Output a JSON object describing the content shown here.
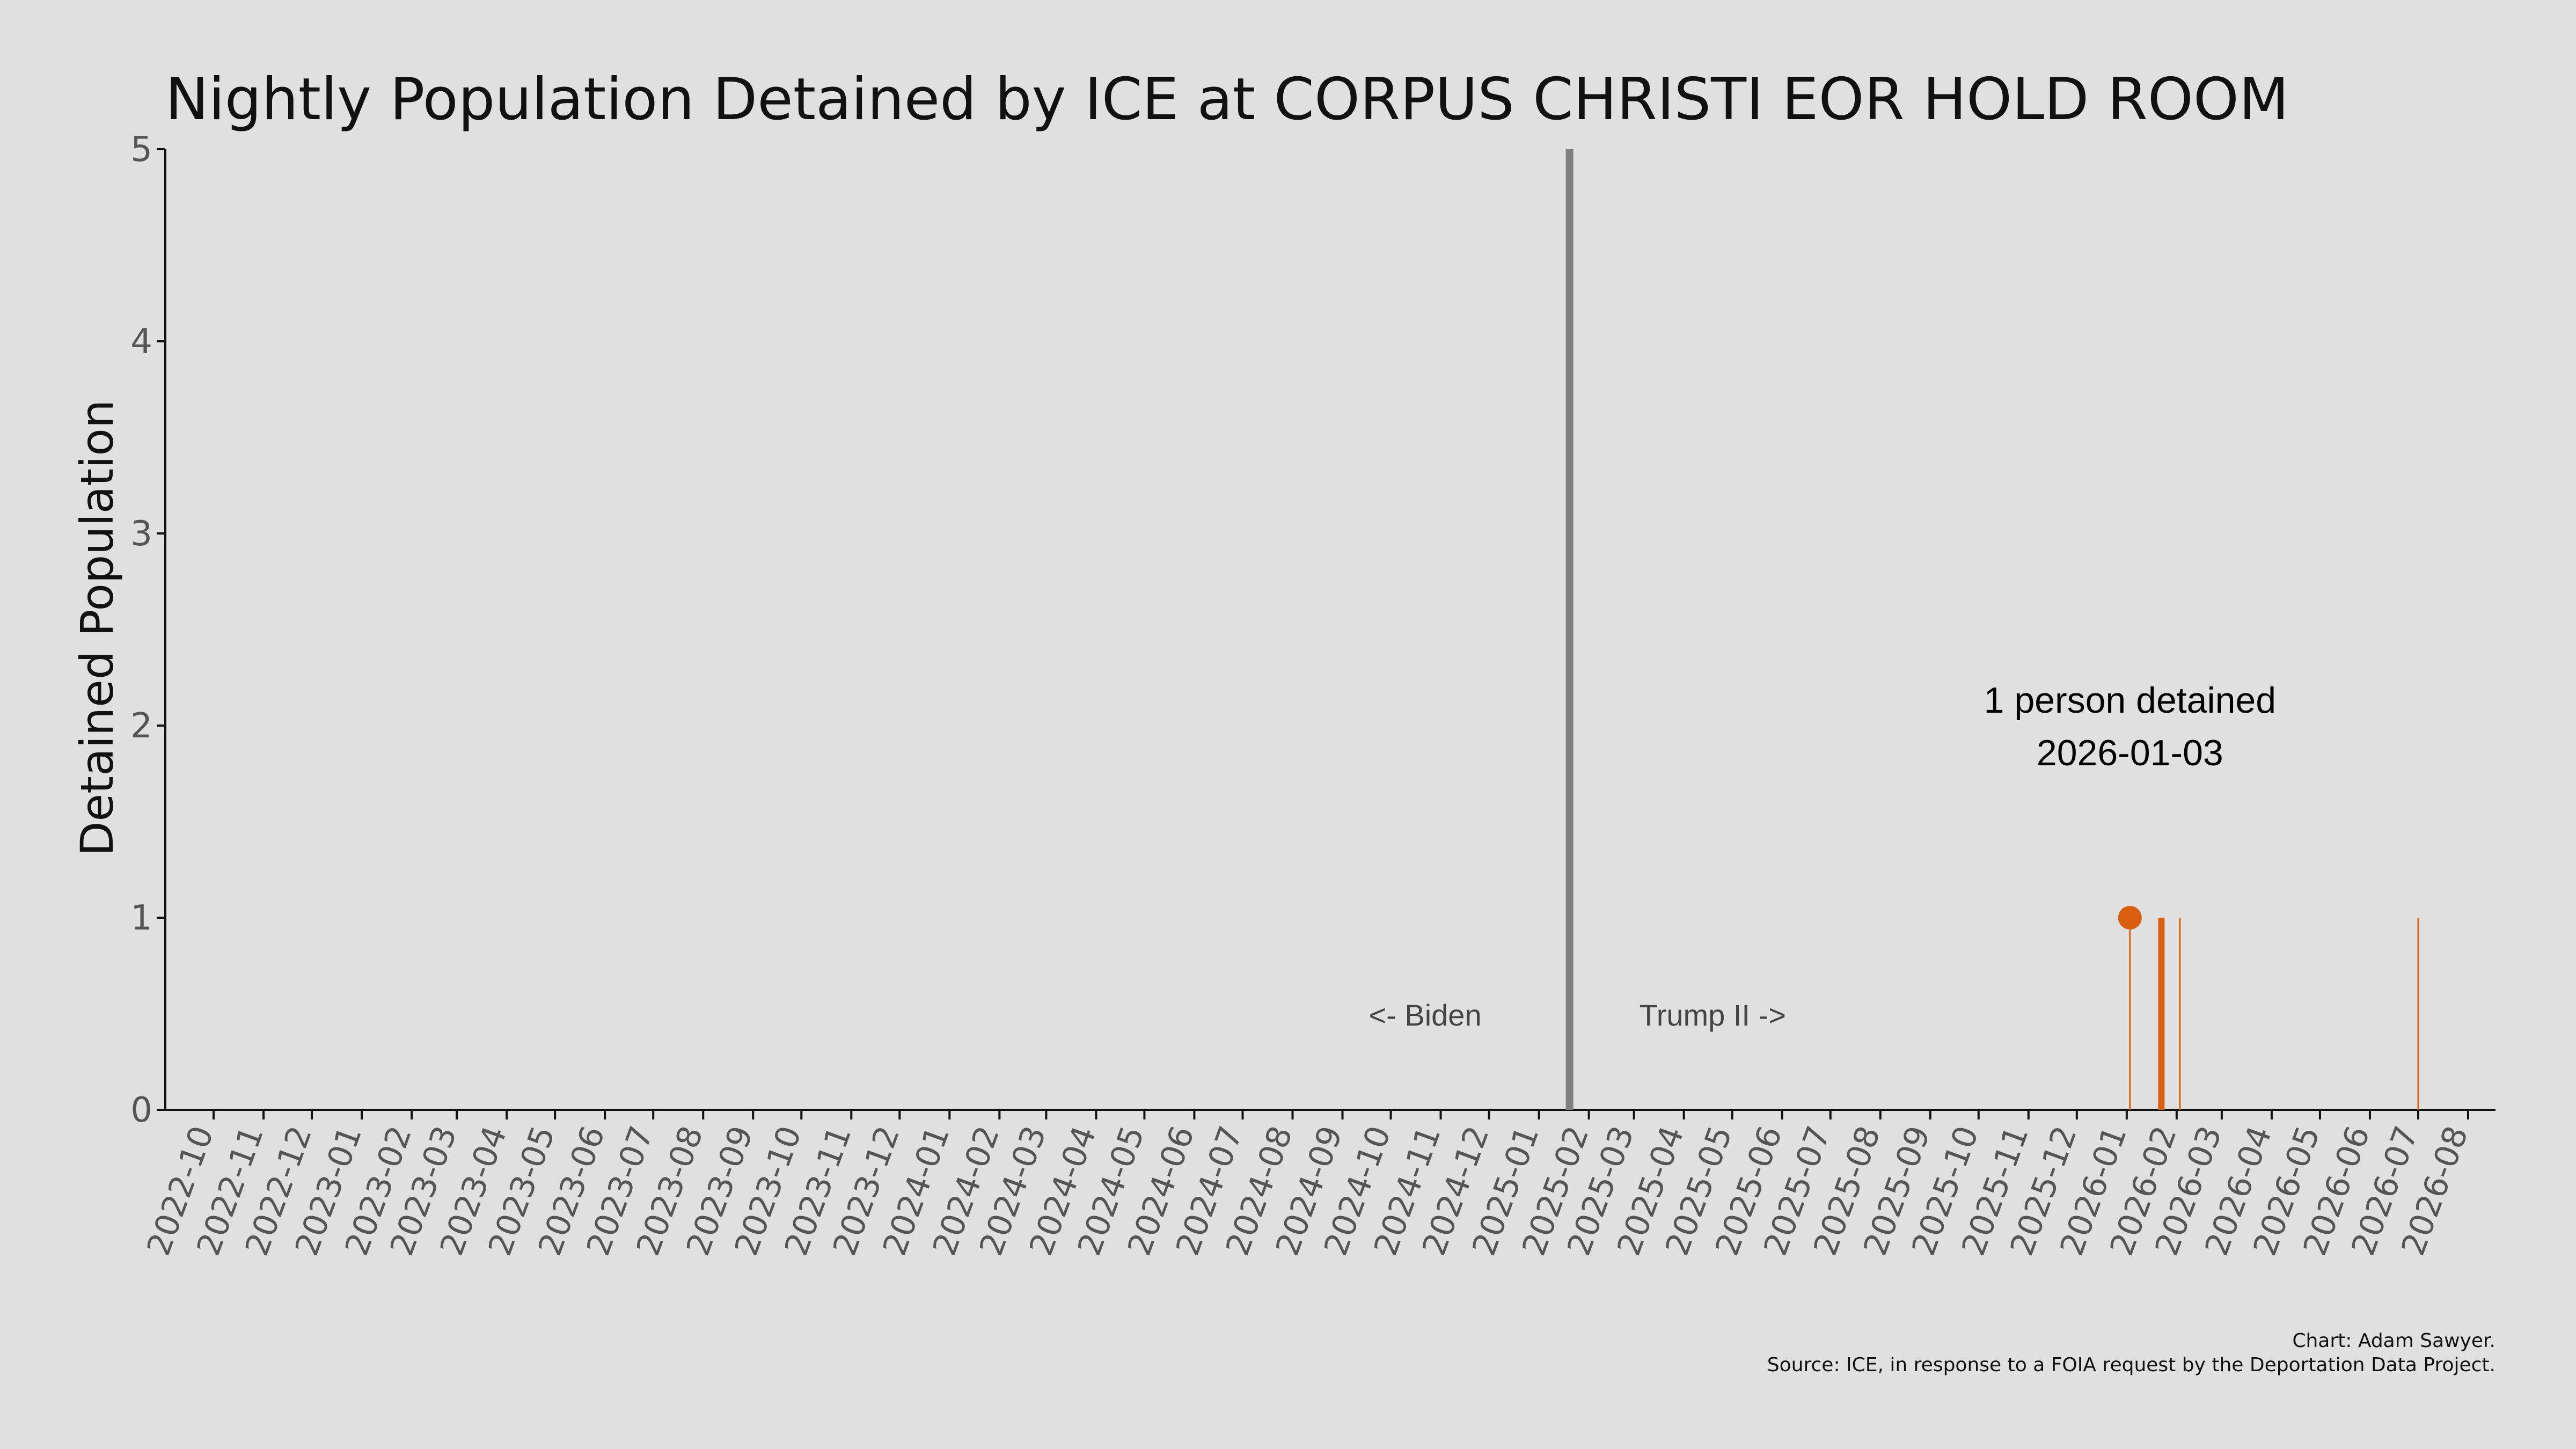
{
  "chart_data": {
    "type": "bar",
    "title": "Nightly Population Detained by ICE at CORPUS CHRISTI EOR HOLD ROOM",
    "xlabel": "",
    "ylabel": "Detained Population",
    "ylim": [
      0,
      5
    ],
    "yticks": [
      0,
      1,
      2,
      3,
      4,
      5
    ],
    "xlim": [
      "2022-09-01",
      "2026-08-18"
    ],
    "xtick_labels": [
      "2022-10",
      "2022-11",
      "2022-12",
      "2023-01",
      "2023-02",
      "2023-03",
      "2023-04",
      "2023-05",
      "2023-06",
      "2023-07",
      "2023-08",
      "2023-09",
      "2023-10",
      "2023-11",
      "2023-12",
      "2024-01",
      "2024-02",
      "2024-03",
      "2024-04",
      "2024-05",
      "2024-06",
      "2024-07",
      "2024-08",
      "2024-09",
      "2024-10",
      "2024-11",
      "2024-12",
      "2025-01",
      "2025-02",
      "2025-03",
      "2025-04",
      "2025-05",
      "2025-06",
      "2025-07",
      "2025-08",
      "2025-09",
      "2025-10",
      "2025-11",
      "2025-12",
      "2026-01",
      "2026-02",
      "2026-03",
      "2026-04",
      "2026-05",
      "2026-06",
      "2026-07",
      "2026-08"
    ],
    "grid": false,
    "bar_color": "#d95f0e",
    "series": [
      {
        "values": [
          {
            "date": "2026-01-03",
            "value": 1
          },
          {
            "date": "2026-01-21",
            "value": 1
          },
          {
            "date": "2026-01-22",
            "value": 1
          },
          {
            "date": "2026-01-23",
            "value": 1
          },
          {
            "date": "2026-01-24",
            "value": 1
          },
          {
            "date": "2026-02-03",
            "value": 1
          },
          {
            "date": "2026-07-01",
            "value": 1
          }
        ]
      }
    ],
    "highlight": {
      "date": "2026-01-03",
      "value": 1,
      "label_line1": "1 person detained",
      "label_line2": "2026-01-03"
    },
    "divider": {
      "date": "2025-01-20",
      "color": "#808080",
      "left_label": "<- Biden",
      "right_label": "Trump II ->"
    },
    "credit": "Chart: Adam Sawyer.",
    "source": "Source: ICE, in response to a FOIA request by the Deportation Data Project."
  }
}
